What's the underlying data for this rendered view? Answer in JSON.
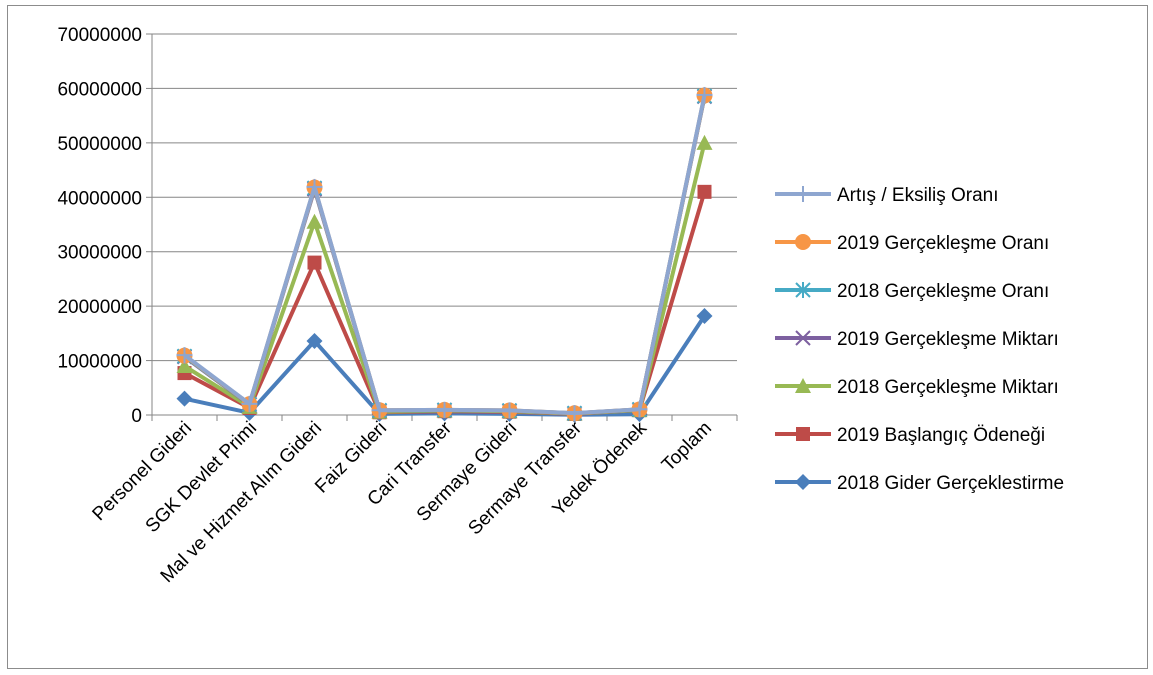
{
  "chart_data": {
    "type": "line",
    "title": "",
    "xlabel": "",
    "ylabel": "",
    "ylim": [
      0,
      70000000
    ],
    "y_ticks": [
      "0",
      "10000000",
      "20000000",
      "30000000",
      "40000000",
      "50000000",
      "60000000",
      "70000000"
    ],
    "grid": "horizontal",
    "legend_position": "right",
    "categories": [
      "Personel Gideri",
      "SGK Devlet Primi",
      "Mal ve Hizmet Alım Gideri",
      "Faiz Gideri",
      "Cari Transfer",
      "Sermaye Gideri",
      "Sermaye Transfer",
      "Yedek Ödenek",
      "Toplam"
    ],
    "series": [
      {
        "name": "2018 Gider Gerçeklestirme",
        "color": "#4a7ebb",
        "marker": "diamond",
        "values": [
          3000000,
          400000,
          13600000,
          200000,
          300000,
          200000,
          50000,
          150000,
          18200000
        ]
      },
      {
        "name": "2019 Başlangıç Ödeneği",
        "color": "#be4b48",
        "marker": "square",
        "values": [
          7700000,
          1300000,
          28000000,
          500000,
          700000,
          600000,
          200000,
          900000,
          41000000
        ]
      },
      {
        "name": "2018 Gerçekleşme Miktarı",
        "color": "#98b954",
        "marker": "triangle",
        "values": [
          9000000,
          1500000,
          35500000,
          600000,
          800000,
          700000,
          250000,
          900000,
          50000000
        ]
      },
      {
        "name": "2019 Gerçekleşme Miktarı",
        "color": "#7d60a0",
        "marker": "x",
        "values": [
          10700000,
          1900000,
          41500000,
          800000,
          900000,
          800000,
          300000,
          1000000,
          58500000
        ]
      },
      {
        "name": "2018 Gerçekleşme  Oranı",
        "color": "#46aac5",
        "marker": "star",
        "values": [
          10800000,
          1950000,
          41700000,
          850000,
          920000,
          820000,
          320000,
          1020000,
          58600000
        ]
      },
      {
        "name": "2019 Gerçekleşme Oranı",
        "color": "#f79646",
        "marker": "circle",
        "values": [
          10900000,
          2000000,
          41800000,
          870000,
          940000,
          840000,
          330000,
          1040000,
          58700000
        ]
      },
      {
        "name": "Artış / Eksiliş Oranı",
        "color": "#8ea6d0",
        "marker": "plus",
        "values": [
          11000000,
          2050000,
          41900000,
          880000,
          950000,
          850000,
          340000,
          1050000,
          58800000
        ]
      }
    ]
  }
}
